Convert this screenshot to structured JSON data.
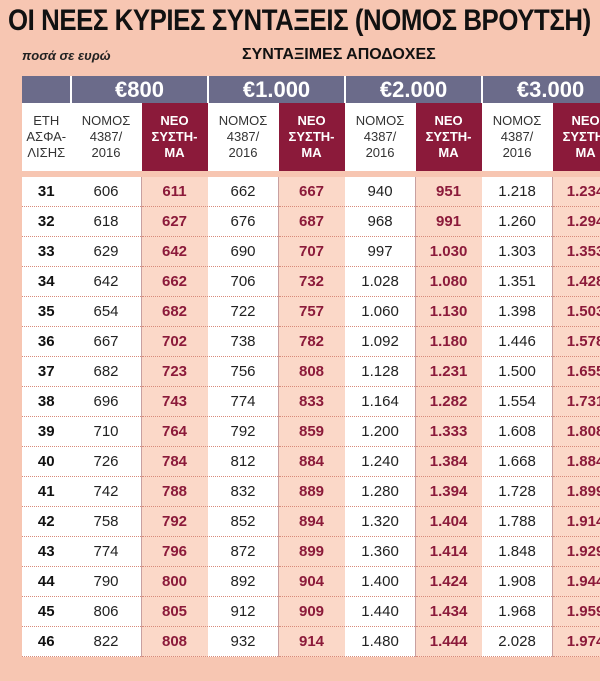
{
  "title": "ΟΙ ΝΕΕΣ ΚΥΡΙΕΣ ΣΥΝΤΑΞΕΙΣ (ΝΟΜΟΣ ΒΡΟΥΤΣΗ)",
  "unit_note": "ποσά σε ευρώ",
  "earnings_label": "ΣΥΝΤΑΞΙΜΕΣ ΑΠΟΔΟΧΕΣ",
  "colors": {
    "band": "#6b6b8a",
    "new_system": "#8b1a3a",
    "background": "#f7c6b2"
  },
  "headers": {
    "years": [
      "ΕΤΗ",
      "ΑΣΦΑ-",
      "ΛΙΣΗΣ"
    ],
    "old_law": [
      "ΝΟΜΟΣ",
      "4387/",
      "2016"
    ],
    "new_system": [
      "ΝΕΟ",
      "ΣΥΣΤΗ-",
      "ΜΑ"
    ]
  },
  "earnings_bands": [
    "€800",
    "€1.000",
    "€2.000",
    "€3.000"
  ],
  "rows": [
    {
      "years": "31",
      "v": [
        "606",
        "611",
        "662",
        "667",
        "940",
        "951",
        "1.218",
        "1.234"
      ]
    },
    {
      "years": "32",
      "v": [
        "618",
        "627",
        "676",
        "687",
        "968",
        "991",
        "1.260",
        "1.294"
      ]
    },
    {
      "years": "33",
      "v": [
        "629",
        "642",
        "690",
        "707",
        "997",
        "1.030",
        "1.303",
        "1.353"
      ]
    },
    {
      "years": "34",
      "v": [
        "642",
        "662",
        "706",
        "732",
        "1.028",
        "1.080",
        "1.351",
        "1.428"
      ]
    },
    {
      "years": "35",
      "v": [
        "654",
        "682",
        "722",
        "757",
        "1.060",
        "1.130",
        "1.398",
        "1.503"
      ]
    },
    {
      "years": "36",
      "v": [
        "667",
        "702",
        "738",
        "782",
        "1.092",
        "1.180",
        "1.446",
        "1.578"
      ]
    },
    {
      "years": "37",
      "v": [
        "682",
        "723",
        "756",
        "808",
        "1.128",
        "1.231",
        "1.500",
        "1.655"
      ]
    },
    {
      "years": "38",
      "v": [
        "696",
        "743",
        "774",
        "833",
        "1.164",
        "1.282",
        "1.554",
        "1.731"
      ]
    },
    {
      "years": "39",
      "v": [
        "710",
        "764",
        "792",
        "859",
        "1.200",
        "1.333",
        "1.608",
        "1.808"
      ]
    },
    {
      "years": "40",
      "v": [
        "726",
        "784",
        "812",
        "884",
        "1.240",
        "1.384",
        "1.668",
        "1.884"
      ]
    },
    {
      "years": "41",
      "v": [
        "742",
        "788",
        "832",
        "889",
        "1.280",
        "1.394",
        "1.728",
        "1.899"
      ]
    },
    {
      "years": "42",
      "v": [
        "758",
        "792",
        "852",
        "894",
        "1.320",
        "1.404",
        "1.788",
        "1.914"
      ]
    },
    {
      "years": "43",
      "v": [
        "774",
        "796",
        "872",
        "899",
        "1.360",
        "1.414",
        "1.848",
        "1.929"
      ]
    },
    {
      "years": "44",
      "v": [
        "790",
        "800",
        "892",
        "904",
        "1.400",
        "1.424",
        "1.908",
        "1.944"
      ]
    },
    {
      "years": "45",
      "v": [
        "806",
        "805",
        "912",
        "909",
        "1.440",
        "1.434",
        "1.968",
        "1.959"
      ]
    },
    {
      "years": "46",
      "v": [
        "822",
        "808",
        "932",
        "914",
        "1.480",
        "1.444",
        "2.028",
        "1.974"
      ]
    }
  ]
}
